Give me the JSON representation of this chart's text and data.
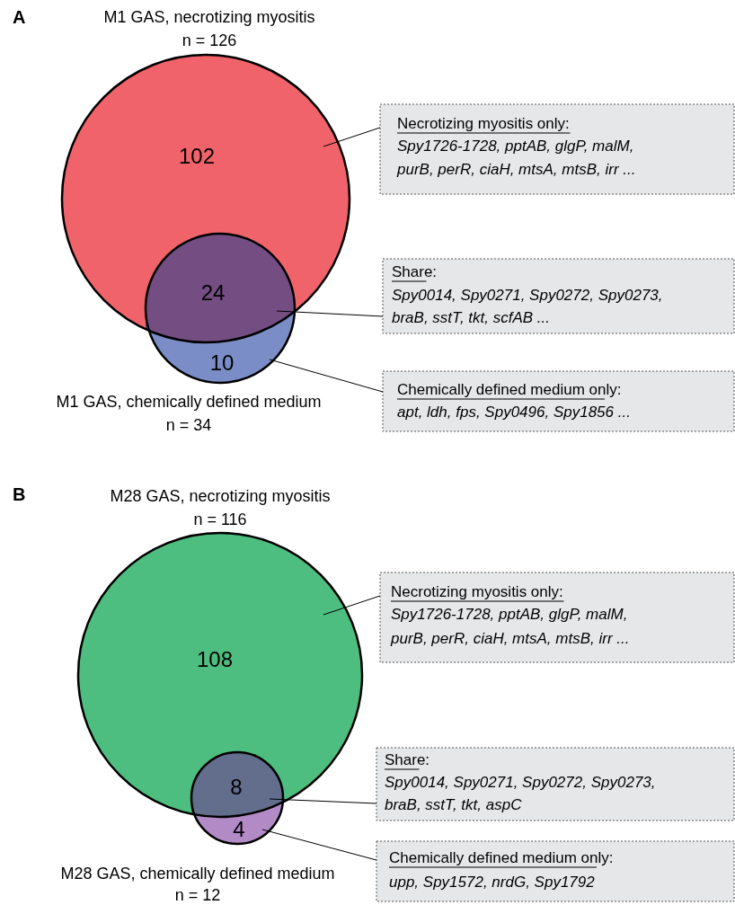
{
  "chart_data": [
    {
      "type": "other",
      "categories": [
        null,
        null,
        null
      ],
      "values": [
        102,
        24,
        10
      ],
      "colors": [
        "#f0636a",
        "#744e83",
        "#7b8dc7"
      ],
      "data_labels": true,
      "annotations": [
        "A",
        "M1 GAS, necrotizing myositis",
        "n = 126",
        "M1 GAS, chemically defined medium",
        "n = 34",
        "Necrotizing myositis only:",
        "Share:",
        "Chemically defined medium only:",
        "Spy1726-1728, pptAB, glgP, malM,",
        "purB, perR, ciaH, mtsA, mtsB, irr ...",
        "Spy0014, Spy0271, Spy0272, Spy0273,",
        "braB, sstT, tkt, scfAB ...",
        "apt, ldh, fps, Spy0496, Spy1856 ..."
      ]
    },
    {
      "type": "other",
      "categories": [
        null,
        null,
        null
      ],
      "values": [
        108,
        8,
        4
      ],
      "colors": [
        "#4ebd80",
        "#636d8c",
        "#b28bc6"
      ],
      "data_labels": true,
      "annotations": [
        "B",
        "M28 GAS, necrotizing myositis",
        "n = 116",
        "M28 GAS, chemically defined medium",
        "n = 12",
        "Necrotizing myositis only:",
        "Share:",
        "Chemically defined medium only:",
        "Spy1726-1728, pptAB, glgP, malM,",
        "purB, perR, ciaH, mtsA, mtsB, irr ...",
        "Spy0014, Spy0271, Spy0272, Spy0273,",
        "braB, sstT, tkt, aspC",
        "upp, Spy1572, nrdG, Spy1792"
      ]
    }
  ]
}
